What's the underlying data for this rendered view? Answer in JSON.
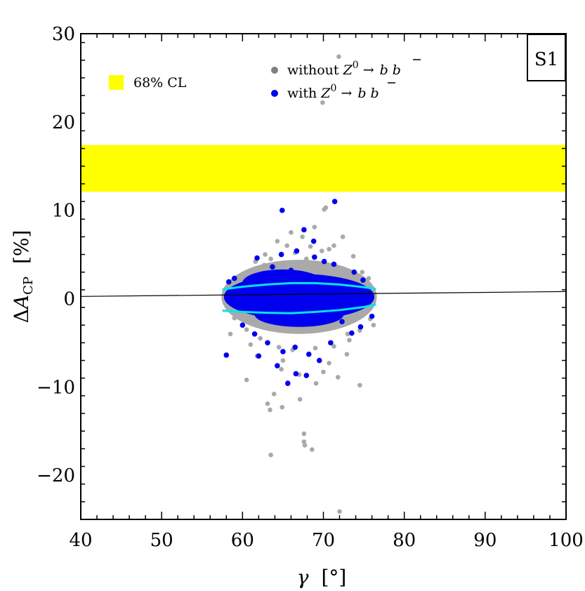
{
  "chart_data": {
    "type": "scatter",
    "panel_label": "S1",
    "xlabel": "γ [°]",
    "ylabel": "ΔA_CP [%]",
    "xlim": [
      40,
      100
    ],
    "ylim": [
      -25,
      30
    ],
    "xticks": [
      40,
      50,
      60,
      70,
      80,
      90,
      100
    ],
    "yticks": [
      -20,
      -10,
      0,
      10,
      20,
      30
    ],
    "band": {
      "label": "68% CL",
      "y_min": 12.1,
      "y_max": 17.4,
      "color": "#ffff00"
    },
    "legend": [
      {
        "label": "without Z⁰ → b b̄",
        "color": "#808080"
      },
      {
        "label": "with Z⁰ → b b̄",
        "color": "#0000ee"
      }
    ],
    "reference_line": {
      "x": [
        40,
        100
      ],
      "y": [
        0.25,
        0.8
      ],
      "color": "#000000"
    },
    "envelope_color": "#00e5ee",
    "envelope_upper": {
      "x": [
        57.5,
        60,
        63,
        66,
        69,
        72,
        75,
        76.5
      ],
      "y": [
        1.05,
        1.35,
        1.6,
        1.75,
        1.75,
        1.6,
        1.3,
        1.1
      ]
    },
    "envelope_lower": {
      "x": [
        57.5,
        60,
        63,
        66,
        69,
        72,
        75,
        76.5
      ],
      "y": [
        -1.35,
        -1.5,
        -1.6,
        -1.65,
        -1.5,
        -1.3,
        -0.95,
        -0.65
      ]
    },
    "series": [
      {
        "name": "without Z⁰ → b b̄",
        "color": "#a9a9a9",
        "points": [
          [
            71.9,
            27.4
          ],
          [
            69.9,
            22.2
          ],
          [
            70.3,
            10.3
          ],
          [
            70.1,
            10.1
          ],
          [
            68.9,
            8.1
          ],
          [
            66.0,
            7.5
          ],
          [
            67.4,
            7.0
          ],
          [
            64.3,
            6.5
          ],
          [
            72.4,
            7.0
          ],
          [
            62.8,
            5.0
          ],
          [
            71.3,
            6.0
          ],
          [
            70.7,
            5.6
          ],
          [
            69.8,
            5.4
          ],
          [
            65.5,
            6.0
          ],
          [
            63.5,
            4.5
          ],
          [
            73.7,
            4.8
          ],
          [
            61.6,
            4.2
          ],
          [
            66.5,
            5.2
          ],
          [
            60.8,
            3.0
          ],
          [
            74.8,
            3.0
          ],
          [
            59.2,
            2.0
          ],
          [
            75.6,
            2.3
          ],
          [
            59.0,
            -2.2
          ],
          [
            75.8,
            -2.3
          ],
          [
            60.5,
            -3.5
          ],
          [
            74.5,
            -3.6
          ],
          [
            62.2,
            -4.5
          ],
          [
            73.2,
            -4.7
          ],
          [
            64.5,
            -5.5
          ],
          [
            66.2,
            -5.8
          ],
          [
            69.0,
            -5.6
          ],
          [
            71.3,
            -5.4
          ],
          [
            61.8,
            -6.5
          ],
          [
            72.9,
            -6.3
          ],
          [
            64.8,
            -8.0
          ],
          [
            67.0,
            -8.6
          ],
          [
            70.0,
            -8.3
          ],
          [
            71.8,
            -8.9
          ],
          [
            60.5,
            -9.2
          ],
          [
            65.6,
            -9.5
          ],
          [
            69.1,
            -9.6
          ],
          [
            74.5,
            -9.8
          ],
          [
            63.9,
            -10.8
          ],
          [
            67.1,
            -11.4
          ],
          [
            63.1,
            -11.9
          ],
          [
            63.4,
            -12.6
          ],
          [
            64.9,
            -12.3
          ],
          [
            67.6,
            -15.3
          ],
          [
            67.6,
            -16.2
          ],
          [
            67.7,
            -16.6
          ],
          [
            68.6,
            -17.1
          ],
          [
            63.5,
            -17.7
          ],
          [
            72.0,
            -24.1
          ],
          [
            58.5,
            -4.0
          ],
          [
            76.2,
            -3.0
          ],
          [
            62.7,
            3.8
          ],
          [
            67.9,
            4.5
          ],
          [
            65.0,
            -7.0
          ],
          [
            70.7,
            -7.3
          ],
          [
            68.4,
            5.9
          ],
          [
            73.0,
            -4.0
          ],
          [
            61.0,
            -5.2
          ]
        ]
      },
      {
        "name": "with Z⁰ → b b̄",
        "color": "#0000ee",
        "points": [
          [
            71.4,
            11.0
          ],
          [
            64.9,
            10.0
          ],
          [
            67.6,
            7.8
          ],
          [
            68.8,
            6.5
          ],
          [
            66.7,
            5.4
          ],
          [
            68.9,
            4.7
          ],
          [
            61.8,
            4.6
          ],
          [
            63.7,
            3.6
          ],
          [
            71.3,
            3.9
          ],
          [
            66.0,
            3.2
          ],
          [
            59.0,
            2.3
          ],
          [
            74.9,
            2.1
          ],
          [
            70.1,
            4.2
          ],
          [
            64.8,
            5.0
          ],
          [
            60.0,
            -3.0
          ],
          [
            61.5,
            -4.0
          ],
          [
            74.6,
            -3.2
          ],
          [
            73.5,
            -3.9
          ],
          [
            63.1,
            -5.0
          ],
          [
            66.5,
            -5.5
          ],
          [
            68.2,
            -6.3
          ],
          [
            70.9,
            -5.0
          ],
          [
            65.0,
            -6.0
          ],
          [
            62.0,
            -6.5
          ],
          [
            66.6,
            -8.5
          ],
          [
            67.9,
            -8.7
          ],
          [
            65.6,
            -9.6
          ],
          [
            64.3,
            -7.6
          ],
          [
            58.0,
            -6.4
          ],
          [
            69.5,
            -7.0
          ],
          [
            72.3,
            -2.6
          ],
          [
            76.0,
            -2.0
          ],
          [
            58.3,
            1.9
          ],
          [
            73.8,
            3.0
          ],
          [
            62.5,
            2.8
          ]
        ]
      }
    ]
  }
}
